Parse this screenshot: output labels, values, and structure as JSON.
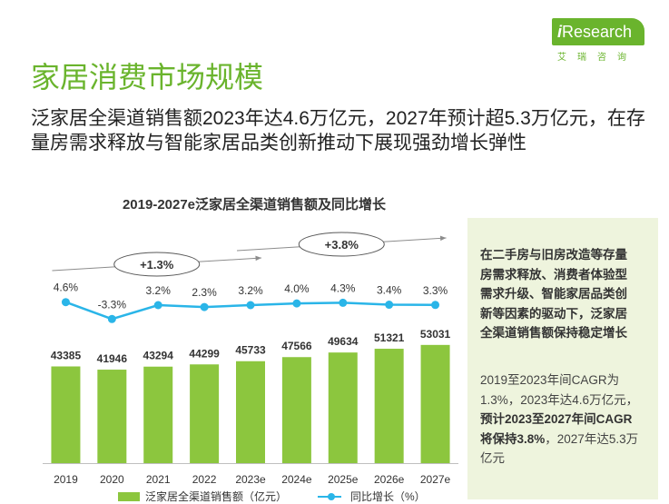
{
  "logo": {
    "brand_i": "i",
    "brand_rest": "Research",
    "sub": "艾瑞咨询"
  },
  "page_title": "家居消费市场规模",
  "subtitle": "泛家居全渠道销售额2023年达4.6万亿元，2027年预计超5.3万亿元，在存量房需求释放与智能家居品类创新推动下展现强劲增长弹性",
  "sidebar": {
    "bold_text": "在二手房与旧房改造等存量房需求释放、消费者体验型需求升级、智能家居品类创新等因素的驱动下，泛家居全渠道销售额保持稳定增长",
    "text_1": "2019至2023年间CAGR为1.3%，2023年达4.6万亿元，",
    "text_bold": "预计2023至2027年间CAGR将保持3.8%",
    "text_2": "，2027年达5.3万亿元"
  },
  "chart_data": {
    "type": "bar",
    "title": "2019-2027e泛家居全渠道销售额及同比增长",
    "categories": [
      "2019",
      "2020",
      "2021",
      "2022",
      "2023e",
      "2024e",
      "2025e",
      "2026e",
      "2027e"
    ],
    "series": [
      {
        "name": "泛家居全渠道销售额（亿元）",
        "type": "bar",
        "color": "#8cc63e",
        "values": [
          43385,
          41946,
          43294,
          44299,
          45733,
          47566,
          49634,
          51321,
          53031
        ]
      },
      {
        "name": "同比增长（%）",
        "type": "line",
        "color": "#2ab5e8",
        "values": [
          4.6,
          -3.3,
          3.2,
          2.3,
          3.2,
          4.0,
          4.3,
          3.4,
          3.3
        ],
        "labels": [
          "4.6%",
          "-3.3%",
          "3.2%",
          "2.3%",
          "3.2%",
          "4.0%",
          "4.3%",
          "3.4%",
          "3.3%"
        ]
      }
    ],
    "annotations": [
      {
        "text": "+1.3%",
        "from": "2019",
        "to": "2023e"
      },
      {
        "text": "+3.8%",
        "from": "2023e",
        "to": "2027e"
      }
    ],
    "ylim": [
      0,
      55000
    ],
    "legend_position": "bottom",
    "grid": false
  }
}
